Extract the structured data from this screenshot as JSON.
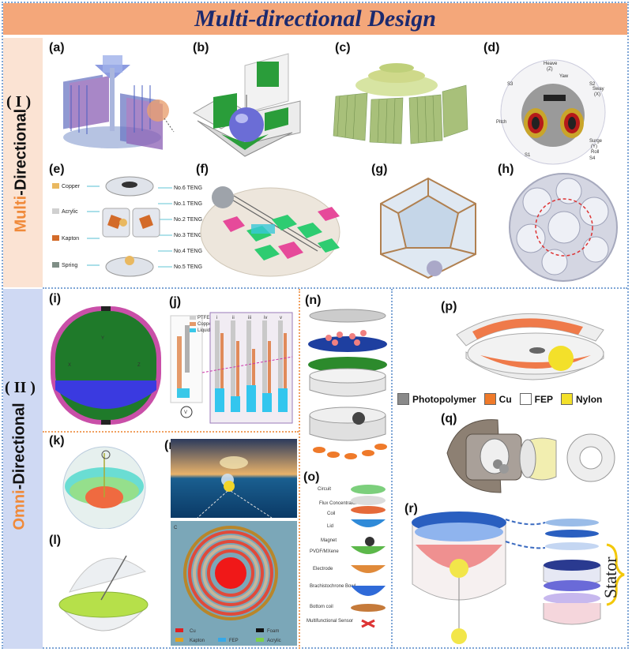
{
  "banner": {
    "title": "Multi-directional Design"
  },
  "section1": {
    "roman": "( I )",
    "accent_word": "Multi",
    "rest": "-Directional"
  },
  "section2": {
    "roman": "( II )",
    "accent_word": "Omni",
    "rest": "-Directional"
  },
  "panels": {
    "a": "(a)",
    "b": "(b)",
    "c": "(c)",
    "d": "(d)",
    "e": "(e)",
    "f": "(f)",
    "g": "(g)",
    "h": "(h)",
    "i": "(i)",
    "j": "(j)",
    "k": "(k)",
    "l": "(l)",
    "m": "(m)",
    "n": "(n)",
    "o": "(o)",
    "p": "(p)",
    "q": "(q)",
    "r": "(r)"
  },
  "panel_d": {
    "heave": "Heave",
    "heave_z": "(Z)",
    "yaw": "Yaw",
    "sway": "Sway",
    "sway_x": "(X)",
    "pitch": "Pitch",
    "surge": "Surge",
    "surge_y": "(Y)",
    "roll": "Roll",
    "s1": "S1",
    "s2": "S2",
    "s3": "S3",
    "s4": "S4"
  },
  "panel_e": {
    "materials": [
      "Copper",
      "Acrylic",
      "Kapton",
      "Spring"
    ],
    "tengs": [
      "No.6 TENG",
      "No.1 TENG",
      "No.2 TENG",
      "No.3 TENG",
      "No.4 TENG",
      "No.5 TENG"
    ]
  },
  "panel_j": {
    "legend": [
      "PTFE",
      "Copper",
      "Liquid"
    ],
    "stages": [
      "i",
      "ii",
      "iii",
      "iv",
      "v"
    ]
  },
  "panel_m": {
    "sublabel": "C",
    "legend": [
      "Cu",
      "Foam",
      "Kapton",
      "FEP",
      "Acrylic"
    ]
  },
  "panel_o": {
    "layers": [
      "Circuit",
      "Flux Concentrator",
      "Coil",
      "Lid",
      "Magnet",
      "PVDF/MXene",
      "Electrode",
      "Brachistochrone Bowl",
      "Bottom coil",
      "Multifunctional Sensor"
    ]
  },
  "panel_p": {
    "legend": [
      "Photopolymer",
      "Cu",
      "FEP",
      "Nylon"
    ]
  },
  "panel_r": {
    "stator": "Stator"
  },
  "colors": {
    "banner": "#f4a77a",
    "title": "#1c2a6e",
    "accent": "#f08a3a",
    "sec1_bg": "#fbe3d3",
    "sec2_bg": "#cfd9f3"
  }
}
